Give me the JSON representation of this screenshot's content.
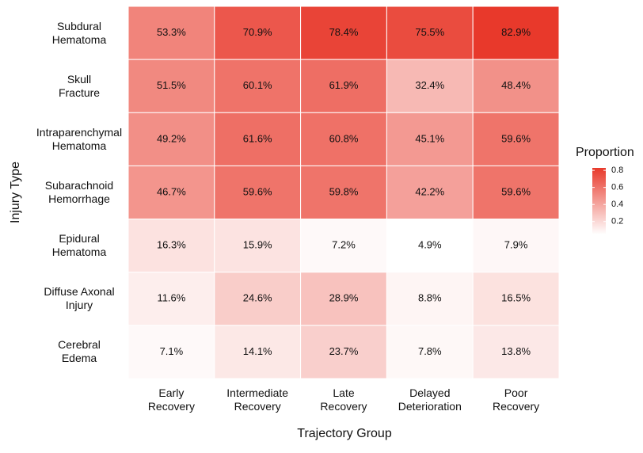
{
  "chart_data": {
    "type": "heatmap",
    "x_label": "Trajectory Group",
    "y_label": "Injury Type",
    "legend_title": "Proportion",
    "x_categories": [
      "Early\nRecovery",
      "Intermediate\nRecovery",
      "Late\nRecovery",
      "Delayed\nDeterioration",
      "Poor\nRecovery"
    ],
    "y_categories": [
      "Subdural\nHematoma",
      "Skull\nFracture",
      "Intraparenchymal\nHematoma",
      "Subarachnoid\nHemorrhage",
      "Epidural\nHematoma",
      "Diffuse Axonal\nInjury",
      "Cerebral\nEdema"
    ],
    "values": [
      [
        0.533,
        0.709,
        0.784,
        0.755,
        0.829
      ],
      [
        0.515,
        0.601,
        0.619,
        0.324,
        0.484
      ],
      [
        0.492,
        0.616,
        0.608,
        0.451,
        0.596
      ],
      [
        0.467,
        0.596,
        0.598,
        0.422,
        0.596
      ],
      [
        0.163,
        0.159,
        0.072,
        0.049,
        0.079
      ],
      [
        0.116,
        0.246,
        0.289,
        0.088,
        0.165
      ],
      [
        0.071,
        0.141,
        0.237,
        0.078,
        0.138
      ]
    ],
    "value_labels": [
      [
        "53.3%",
        "70.9%",
        "78.4%",
        "75.5%",
        "82.9%"
      ],
      [
        "51.5%",
        "60.1%",
        "61.9%",
        "32.4%",
        "48.4%"
      ],
      [
        "49.2%",
        "61.6%",
        "60.8%",
        "45.1%",
        "59.6%"
      ],
      [
        "46.7%",
        "59.6%",
        "59.8%",
        "42.2%",
        "59.6%"
      ],
      [
        "16.3%",
        "15.9%",
        "7.2%",
        "4.9%",
        "7.9%"
      ],
      [
        "11.6%",
        "24.6%",
        "28.9%",
        "8.8%",
        "16.5%"
      ],
      [
        "7.1%",
        "14.1%",
        "23.7%",
        "7.8%",
        "13.8%"
      ]
    ],
    "clim": [
      0.049,
      0.829
    ],
    "cticks": [
      0.2,
      0.4,
      0.6,
      0.8
    ],
    "color_low": "#ffffff",
    "color_high": "#e8392b"
  }
}
